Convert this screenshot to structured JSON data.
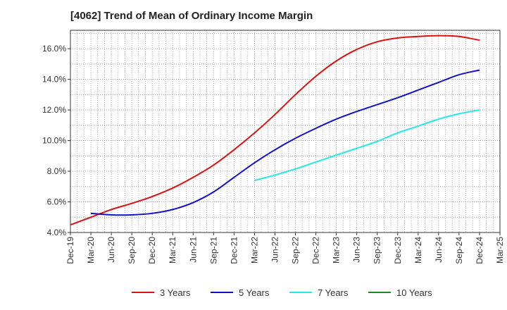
{
  "chart_data": {
    "type": "line",
    "title": "[4062]  Trend of Mean of Ordinary Income Margin",
    "x_categories": [
      "Dec-19",
      "Mar-20",
      "Jun-20",
      "Sep-20",
      "Dec-20",
      "Mar-21",
      "Jun-21",
      "Sep-21",
      "Dec-21",
      "Mar-22",
      "Jun-22",
      "Sep-22",
      "Dec-22",
      "Mar-23",
      "Jun-23",
      "Sep-23",
      "Dec-23",
      "Mar-24",
      "Jun-24",
      "Sep-24",
      "Dec-24",
      "Mar-25"
    ],
    "y_ticks": [
      "4.0%",
      "6.0%",
      "8.0%",
      "10.0%",
      "12.0%",
      "14.0%",
      "16.0%"
    ],
    "ylim": [
      4.0,
      17.2
    ],
    "grid": true,
    "legend_position": "bottom",
    "series": [
      {
        "name": "3 Years",
        "color": "#dd1111",
        "start_index": 0,
        "values": [
          4.5,
          5.0,
          5.5,
          5.9,
          6.35,
          6.9,
          7.6,
          8.4,
          9.4,
          10.5,
          11.7,
          13.0,
          14.2,
          15.2,
          15.95,
          16.45,
          16.7,
          16.8,
          16.85,
          16.8,
          16.55
        ]
      },
      {
        "name": "5 Years",
        "color": "#1111cc",
        "start_index": 1,
        "values": [
          5.25,
          5.15,
          5.15,
          5.25,
          5.5,
          5.95,
          6.65,
          7.6,
          8.55,
          9.4,
          10.15,
          10.8,
          11.4,
          11.9,
          12.35,
          12.8,
          13.3,
          13.8,
          14.3,
          14.6
        ]
      },
      {
        "name": "7 Years",
        "color": "#22e8e8",
        "start_index": 9,
        "values": [
          7.4,
          7.75,
          8.15,
          8.6,
          9.05,
          9.5,
          9.95,
          10.5,
          10.95,
          11.4,
          11.75,
          12.0
        ]
      },
      {
        "name": "10 Years",
        "color": "#228822",
        "start_index": 0,
        "values": []
      }
    ]
  }
}
